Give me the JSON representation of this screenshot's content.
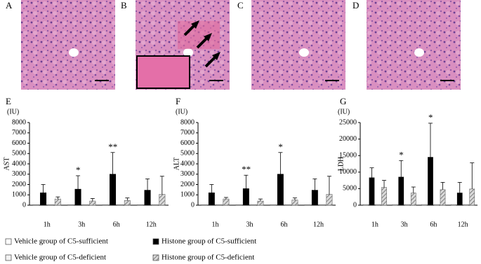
{
  "panel_labels": [
    "A",
    "B",
    "C",
    "D"
  ],
  "chart_data": [
    {
      "type": "bar",
      "label": "E",
      "unit": "(IU)",
      "ylabel": "AST",
      "categories": [
        "1h",
        "3h",
        "6h",
        "12h"
      ],
      "ylim": [
        0,
        8000
      ],
      "yticks": [
        0,
        1000,
        2000,
        3000,
        4000,
        5000,
        6000,
        7000,
        8000
      ],
      "annotations": [
        null,
        "*",
        "**",
        null
      ],
      "series": [
        {
          "name": "Vehicle group of C5-sufficient",
          "color": "#ffffff",
          "values": [
            50,
            50,
            50,
            50
          ]
        },
        {
          "name": "Histone group of C5-sufficient",
          "color": "#000000",
          "values": [
            1200,
            1550,
            3000,
            1450
          ],
          "errors": [
            800,
            1300,
            2100,
            1100
          ]
        },
        {
          "name": "Vehicle group of C5-deficient",
          "color": "#f2f2f2",
          "values": [
            50,
            50,
            50,
            50
          ]
        },
        {
          "name": "Histone group of C5-deficient",
          "color": "#a6a6a6",
          "pattern": "hatch",
          "values": [
            600,
            400,
            450,
            1050
          ],
          "errors": [
            200,
            250,
            250,
            1750
          ]
        }
      ]
    },
    {
      "type": "bar",
      "label": "F",
      "unit": "(IU)",
      "ylabel": "ALT",
      "categories": [
        "1h",
        "3h",
        "6h",
        "12h"
      ],
      "ylim": [
        0,
        8000
      ],
      "yticks": [
        0,
        1000,
        2000,
        3000,
        4000,
        5000,
        6000,
        7000,
        8000
      ],
      "annotations": [
        null,
        "**",
        "*",
        null
      ],
      "series": [
        {
          "color": "#ffffff",
          "values": [
            50,
            50,
            50,
            50
          ]
        },
        {
          "color": "#000000",
          "values": [
            1200,
            1600,
            3000,
            1450
          ],
          "errors": [
            800,
            1300,
            2100,
            1100
          ]
        },
        {
          "color": "#f2f2f2",
          "values": [
            50,
            50,
            50,
            50
          ]
        },
        {
          "color": "#a6a6a6",
          "pattern": "hatch",
          "values": [
            600,
            400,
            500,
            1050
          ],
          "errors": [
            150,
            200,
            200,
            1750
          ]
        }
      ]
    },
    {
      "type": "bar",
      "label": "G",
      "unit": "(IU)",
      "ylabel": "LDH",
      "categories": [
        "1h",
        "3h",
        "6h",
        "12h"
      ],
      "ylim": [
        0,
        25000
      ],
      "yticks": [
        0,
        5000,
        10000,
        15000,
        20000,
        25000
      ],
      "annotations": [
        null,
        "*",
        "*",
        null
      ],
      "series": [
        {
          "color": "#ffffff",
          "values": [
            200,
            200,
            200,
            200
          ]
        },
        {
          "color": "#000000",
          "values": [
            8300,
            8500,
            14500,
            3700
          ],
          "errors": [
            3000,
            5000,
            10300,
            3200
          ]
        },
        {
          "color": "#f2f2f2",
          "values": [
            200,
            200,
            200,
            200
          ]
        },
        {
          "color": "#a6a6a6",
          "pattern": "hatch",
          "values": [
            5400,
            3700,
            4700,
            4900
          ],
          "errors": [
            2100,
            1800,
            2200,
            7900
          ]
        }
      ]
    }
  ]
}
